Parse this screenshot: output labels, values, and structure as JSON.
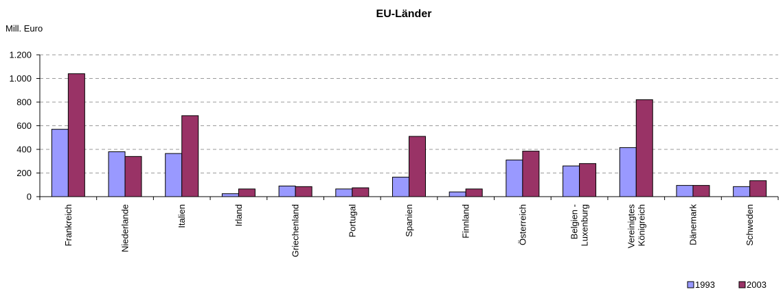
{
  "chart_data": {
    "type": "bar",
    "title": "EU-Länder",
    "ylabel": "Mill. Euro",
    "xlabel": "",
    "ylim": [
      0,
      1200
    ],
    "yticks": [
      0,
      200,
      400,
      600,
      800,
      1000,
      1200
    ],
    "ytick_labels": [
      "0",
      "200",
      "400",
      "600",
      "800",
      "1.000",
      "1.200"
    ],
    "grid": true,
    "legend_position": "bottom-right",
    "categories": [
      [
        "Frankreich"
      ],
      [
        "Niederlande"
      ],
      [
        "Italien"
      ],
      [
        "Irland"
      ],
      [
        "Griechenland"
      ],
      [
        "Portugal"
      ],
      [
        "Spanien"
      ],
      [
        "Finnland"
      ],
      [
        "Österreich"
      ],
      [
        "Belgien -",
        "Luxenburg"
      ],
      [
        "Vereinigtes",
        "Königreich"
      ],
      [
        "Dänemark"
      ],
      [
        "Schweden"
      ]
    ],
    "series": [
      {
        "name": "1993",
        "color": "#9999ff",
        "values": [
          570,
          380,
          365,
          25,
          90,
          65,
          165,
          40,
          310,
          260,
          415,
          95,
          85
        ]
      },
      {
        "name": "2003",
        "color": "#993366",
        "values": [
          1040,
          340,
          685,
          65,
          85,
          75,
          510,
          65,
          385,
          280,
          820,
          95,
          135
        ]
      }
    ]
  }
}
